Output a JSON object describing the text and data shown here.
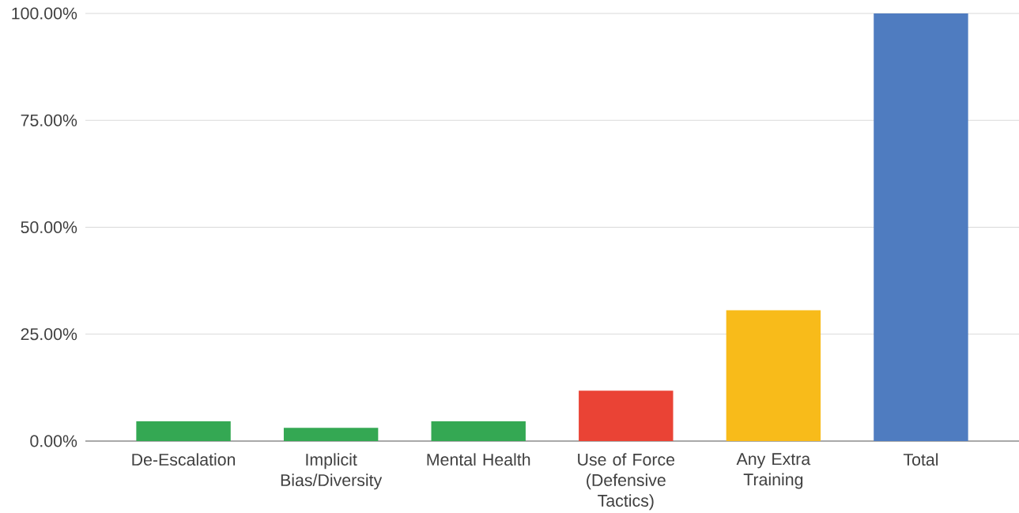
{
  "chart_data": {
    "type": "bar",
    "categories": [
      "De-Escalation",
      "Implicit Bias/Diversity",
      "Mental Health",
      "Use of Force (Defensive Tactics)",
      "Any Extra Training",
      "Total"
    ],
    "values": [
      4.6,
      3.1,
      4.6,
      11.8,
      30.6,
      100
    ],
    "colors": [
      "#34a853",
      "#34a853",
      "#34a853",
      "#ea4335",
      "#f8bb1a",
      "#4f7cc0"
    ],
    "ylim": [
      0,
      100
    ],
    "yticks": [
      {
        "value": 0,
        "label": "0.00%"
      },
      {
        "value": 25,
        "label": "25.00%"
      },
      {
        "value": 50,
        "label": "50.00%"
      },
      {
        "value": 75,
        "label": "75.00%"
      },
      {
        "value": 100,
        "label": "100.00%"
      }
    ],
    "grid": "y"
  }
}
